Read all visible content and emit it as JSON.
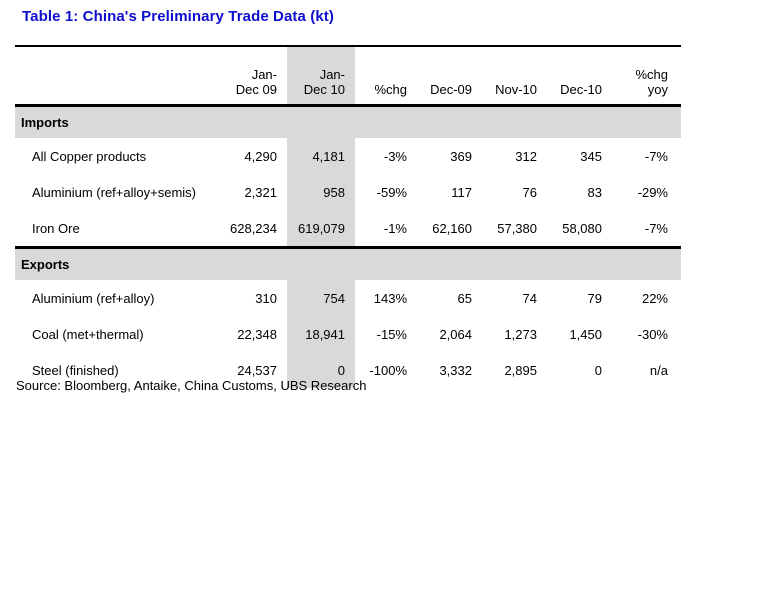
{
  "title": "Table 1: China's Preliminary Trade Data (kt)",
  "colors": {
    "title_accent": "#0e0ecd",
    "highlight_gray": "#d9d9d9",
    "rule_black": "#000000"
  },
  "table": {
    "columns": [
      {
        "line1": "Jan-",
        "line2": "Dec 09"
      },
      {
        "line1": "Jan-",
        "line2": "Dec 10",
        "highlighted": true
      },
      {
        "line1": "",
        "line2": "%chg"
      },
      {
        "line1": "",
        "line2": "Dec-09"
      },
      {
        "line1": "",
        "line2": "Nov-10"
      },
      {
        "line1": "",
        "line2": "Dec-10"
      },
      {
        "line1": "%chg",
        "line2": "yoy"
      }
    ],
    "sections": [
      {
        "name": "Imports",
        "rows": [
          {
            "label": "All Copper products",
            "values": [
              "4,290",
              "4,181",
              "-3%",
              "369",
              "312",
              "345",
              "-7%"
            ]
          },
          {
            "label": "Aluminium (ref+alloy+semis)",
            "values": [
              "2,321",
              "958",
              "-59%",
              "117",
              "76",
              "83",
              "-29%"
            ]
          },
          {
            "label": "Iron Ore",
            "values": [
              "628,234",
              "619,079",
              "-1%",
              "62,160",
              "57,380",
              "58,080",
              "-7%"
            ]
          }
        ]
      },
      {
        "name": "Exports",
        "rows": [
          {
            "label": "Aluminium (ref+alloy)",
            "values": [
              "310",
              "754",
              "143%",
              "65",
              "74",
              "79",
              "22%"
            ]
          },
          {
            "label": "Coal (met+thermal)",
            "values": [
              "22,348",
              "18,941",
              "-15%",
              "2,064",
              "1,273",
              "1,450",
              "-30%"
            ]
          },
          {
            "label": "Steel (finished)",
            "values": [
              "24,537",
              "0",
              "-100%",
              "3,332",
              "2,895",
              "0",
              "n/a"
            ]
          }
        ]
      }
    ]
  },
  "source": "Source: Bloomberg, Antaike, China Customs, UBS Research"
}
